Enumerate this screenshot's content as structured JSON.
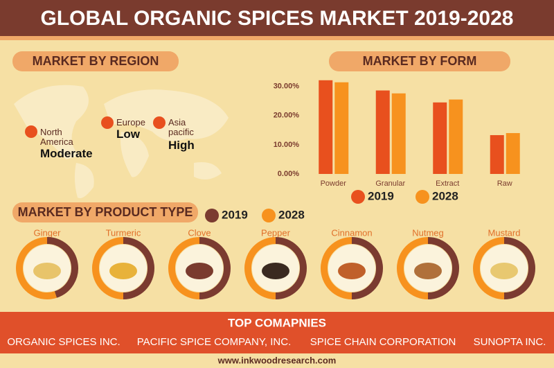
{
  "header": {
    "title": "GLOBAL ORGANIC SPICES MARKET 2019-2028"
  },
  "region": {
    "title": "MARKET BY REGION",
    "items": [
      {
        "name": "North America",
        "level": "Moderate"
      },
      {
        "name": "Europe",
        "level": "Low"
      },
      {
        "name": "Asia pacific",
        "level": "High"
      }
    ]
  },
  "chart_data": {
    "type": "bar",
    "title": "MARKET BY FORM",
    "categories": [
      "Powder",
      "Granular",
      "Extract",
      "Raw"
    ],
    "series": [
      {
        "name": "2019",
        "color": "#e8501e",
        "values": [
          32.1,
          28.6,
          24.5,
          13.3
        ]
      },
      {
        "name": "2028",
        "color": "#f7921e",
        "values": [
          31.4,
          27.6,
          25.5,
          14.0
        ]
      }
    ],
    "ylim": [
      0,
      33
    ],
    "yticks": [
      {
        "value": 0,
        "label": "0.00%"
      },
      {
        "value": 10,
        "label": "10.00%"
      },
      {
        "value": 20,
        "label": "20.00%"
      },
      {
        "value": 30,
        "label": "30.00%"
      }
    ]
  },
  "product_type": {
    "title": "MARKET BY PRODUCT TYPE",
    "legend": [
      {
        "name": "2019",
        "color": "#7b3b30"
      },
      {
        "name": "2028",
        "color": "#f7921e"
      }
    ],
    "items": [
      {
        "name": "Ginger",
        "share_2019": 45
      },
      {
        "name": "Turmeric",
        "share_2019": 50
      },
      {
        "name": "Clove",
        "share_2019": 50
      },
      {
        "name": "Pepper",
        "share_2019": 50
      },
      {
        "name": "Cinnamon",
        "share_2019": 50
      },
      {
        "name": "Nutmeg",
        "share_2019": 50
      },
      {
        "name": "Mustard",
        "share_2019": 50
      }
    ]
  },
  "companies": {
    "title": "TOP COMAPNIES",
    "names": [
      "ORGANIC SPICES INC.",
      "PACIFIC SPICE COMPANY, INC.",
      "SPICE CHAIN CORPORATION",
      "SUNOPTA INC."
    ]
  },
  "footer": {
    "url": "www.inkwoodresearch.com"
  }
}
